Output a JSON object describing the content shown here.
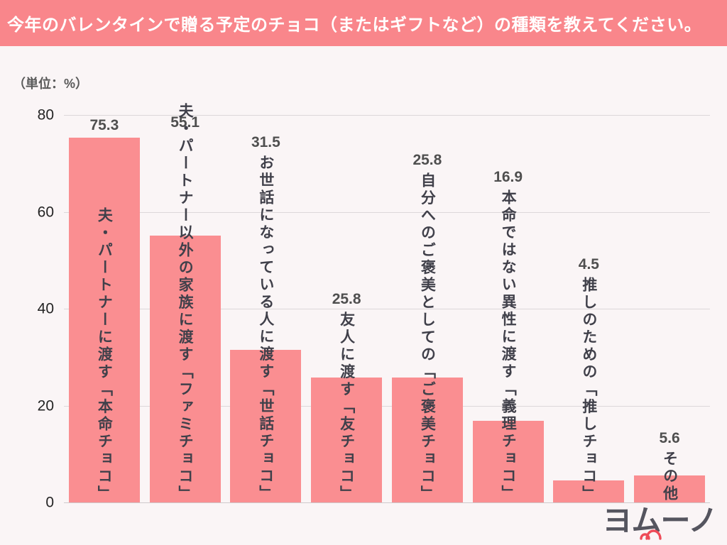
{
  "title": "今年のバレンタインで贈る予定のチョコ（またはギフトなど）の種類を教えてください。",
  "unit_label": "（単位：%）",
  "logo_text": "ヨムーノ",
  "colors": {
    "header_bg": "#f9868b",
    "page_bg": "#faf5f6",
    "bar": "#fa8e91",
    "gridline": "#dcd7d9",
    "title_text": "#ffffff",
    "value_text": "#4f4f4f",
    "label_text": "#40404a",
    "logo_accent": "#ee4b58"
  },
  "chart_data": {
    "type": "bar",
    "title": "今年のバレンタインで贈る予定のチョコ（またはギフトなど）の種類を教えてください。",
    "unit": "%",
    "categories": [
      "夫・パートナーに渡す「本命チョコ」",
      "夫・パートナー以外の家族に渡す「ファミチョコ」",
      "お世話になっている人に渡す「世話チョコ」",
      "友人に渡す「友チョコ」",
      "自分へのご褒美としての「ご褒美チョコ」",
      "本命ではない異性に渡す「義理チョコ」",
      "推しのための「推しチョコ」",
      "その他"
    ],
    "values": [
      75.3,
      55.1,
      31.5,
      25.8,
      25.8,
      16.9,
      4.5,
      5.6
    ],
    "xlabel": "",
    "ylabel": "%",
    "ylim": [
      0,
      80
    ],
    "yticks": [
      0,
      20,
      40,
      60,
      80
    ],
    "grid": true,
    "legend": false,
    "bar_color": "#fa8e91",
    "value_labels": "above bars / above vertical category text",
    "category_label_style": "vertical text anchored to baseline, overlapping bars"
  }
}
